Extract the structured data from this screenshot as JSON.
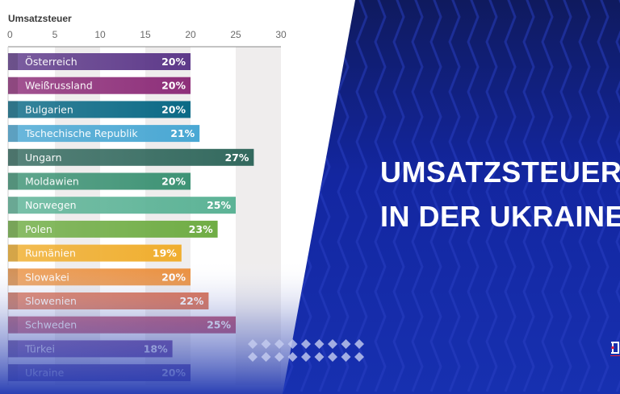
{
  "chart_data": {
    "type": "bar",
    "orientation": "horizontal",
    "title": "Umsatzsteuer",
    "xlabel": "",
    "ylabel": "",
    "xlim": [
      0,
      30
    ],
    "xticks": [
      "0",
      "5",
      "10",
      "15",
      "20",
      "25",
      "30"
    ],
    "grid": "alternating vertical bands",
    "categories": [
      "Österreich",
      "Weißrussland",
      "Bulgarien",
      "Tschechische Republik",
      "Ungarn",
      "Moldawien",
      "Norwegen",
      "Polen",
      "Rumänien",
      "Slowakei",
      "Slowenien",
      "Schweden",
      "Türkei",
      "Ukraine"
    ],
    "values": [
      20,
      20,
      20,
      21,
      27,
      20,
      25,
      23,
      19,
      20,
      22,
      25,
      18,
      20
    ],
    "value_labels": [
      "20%",
      "20%",
      "20%",
      "21%",
      "27%",
      "20%",
      "25%",
      "23%",
      "19%",
      "20%",
      "22%",
      "25%",
      "18%",
      "20%"
    ],
    "colors": [
      "#5e3a8a",
      "#8e2f7a",
      "#0b6a86",
      "#4aa8d4",
      "#33695e",
      "#3e9375",
      "#5cb396",
      "#70ad45",
      "#f0ae2e",
      "#eb8b34",
      "#d9613d",
      "#b33a5e",
      "#5a2e90",
      "#4a2f95"
    ]
  },
  "banner": {
    "headline_line1": "UMSATZSTEUER",
    "headline_line2": "IN DER UKRAINE",
    "background_color": "#1428a8",
    "accent_color": "#e0233b"
  }
}
